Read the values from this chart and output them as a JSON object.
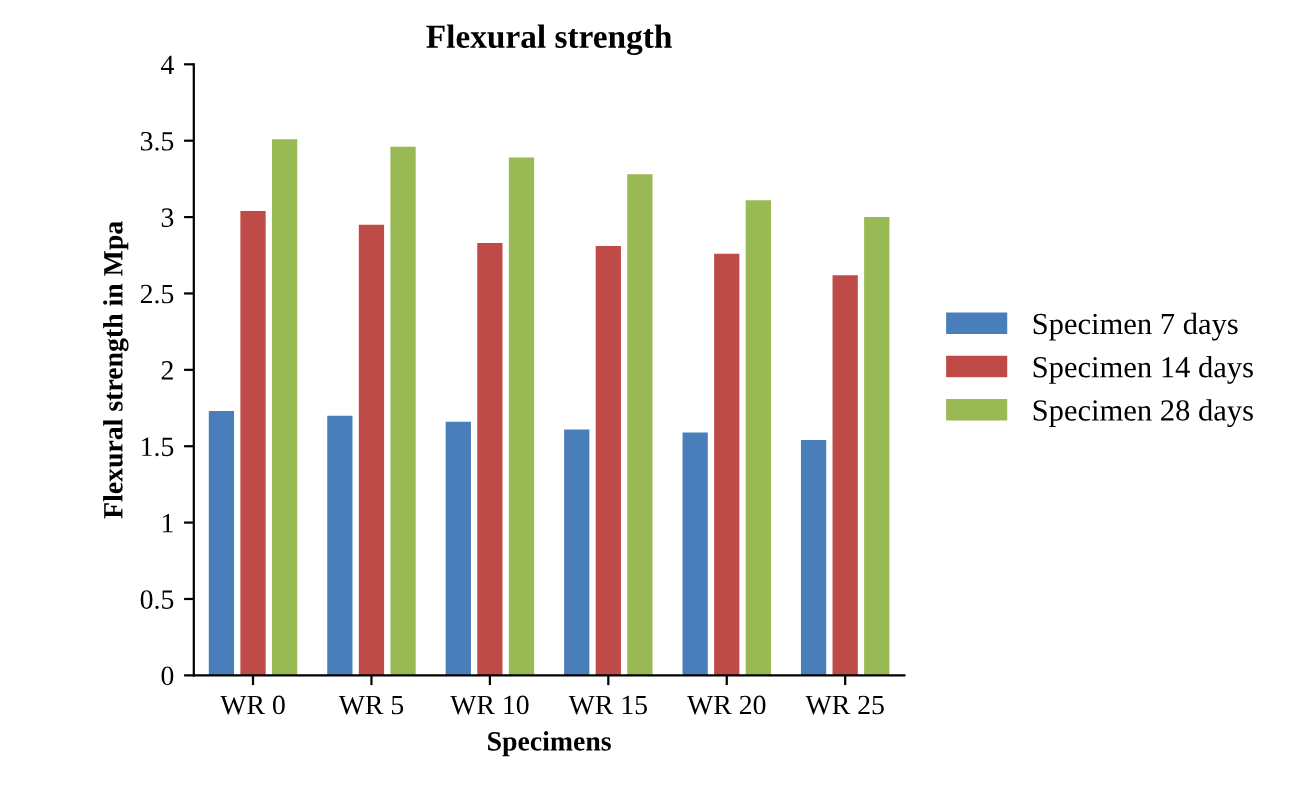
{
  "chart_data": {
    "type": "bar",
    "title": "Flexural strength",
    "xlabel": "Specimens",
    "ylabel": "Flexural strength in Mpa",
    "categories": [
      "WR 0",
      "WR 5",
      "WR 10",
      "WR 15",
      "WR 20",
      "WR 25"
    ],
    "series": [
      {
        "name": "Specimen 7 days",
        "color": "#4a7ebb",
        "values": [
          1.73,
          1.7,
          1.66,
          1.61,
          1.59,
          1.54
        ]
      },
      {
        "name": "Specimen 14 days",
        "color": "#be4b48",
        "values": [
          3.04,
          2.95,
          2.83,
          2.81,
          2.76,
          2.62
        ]
      },
      {
        "name": "Specimen 28 days",
        "color": "#98b954",
        "values": [
          3.51,
          3.46,
          3.39,
          3.28,
          3.11,
          3.0
        ]
      }
    ],
    "ylim": [
      0,
      4
    ],
    "yticks": [
      0,
      0.5,
      1,
      1.5,
      2,
      2.5,
      3,
      3.5,
      4
    ],
    "grid": false,
    "legend": "right"
  }
}
